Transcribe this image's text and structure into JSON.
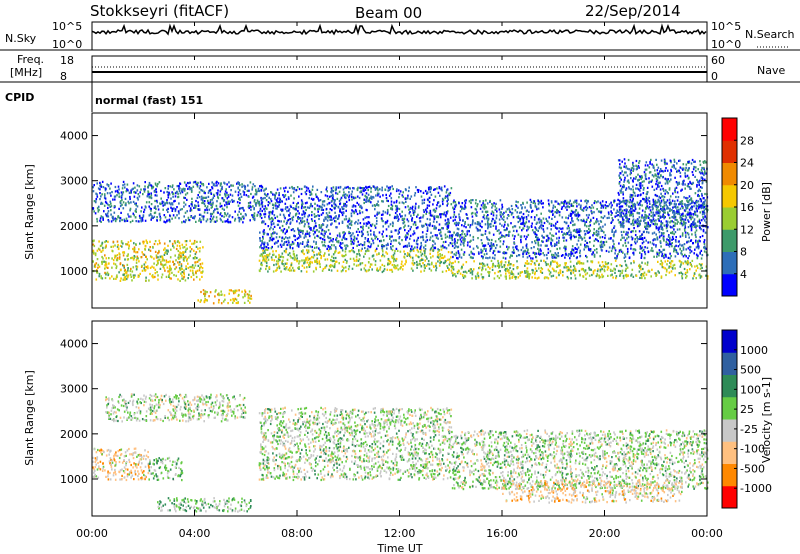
{
  "header": {
    "station": "Stokkseyri (fitACF)",
    "beam": "Beam 00",
    "date": "22/Sep/2014"
  },
  "strip": {
    "nsky_label": "N.Sky",
    "nsky_ticks": [
      "10^5",
      "10^0"
    ],
    "nsearch_label": "N.Search",
    "nsearch_ticks": [
      "10^5",
      "10^0"
    ],
    "freq_label_line1": "Freq.",
    "freq_label_line2": "[MHz]",
    "freq_ticks": [
      "18",
      "8"
    ],
    "nave_label": "Nave",
    "nave_ticks": [
      "60",
      "0"
    ],
    "cpid_label": "CPID",
    "cpid_value": "normal (fast) 151"
  },
  "x_axis": {
    "ticks": [
      "00:00",
      "04:00",
      "08:00",
      "12:00",
      "16:00",
      "20:00",
      "00:00"
    ],
    "label": "Time UT"
  },
  "power_panel": {
    "ylabel": "Slant Range [km]",
    "yticks": [
      "4000",
      "3000",
      "2000",
      "1000"
    ],
    "colorbar_label": "Power [dB]",
    "colorbar_ticks": [
      "28",
      "24",
      "20",
      "16",
      "12",
      "8",
      "4"
    ]
  },
  "velocity_panel": {
    "ylabel": "Slant Range [km]",
    "yticks": [
      "4000",
      "3000",
      "2000",
      "1000"
    ],
    "colorbar_label": "Velocity [m s-1]",
    "colorbar_ticks": [
      "1000",
      "500",
      "100",
      "25",
      "-25",
      "-100",
      "-500",
      "-1000"
    ]
  },
  "chart_data": [
    {
      "type": "heatmap",
      "title": "Power",
      "xlabel": "Time UT",
      "ylabel": "Slant Range [km]",
      "x_range_hours": [
        0,
        24
      ],
      "y_range_km": [
        180,
        4500
      ],
      "colorbar": {
        "label": "Power [dB]",
        "range": [
          0,
          32
        ],
        "colors": [
          "#0000ff",
          "#2d6eb8",
          "#3d9a6a",
          "#9acd32",
          "#f5c800",
          "#f08a00",
          "#e03000",
          "#ff0000"
        ]
      },
      "regions": [
        {
          "t_start": 0.0,
          "t_end": 4.3,
          "r_low": 800,
          "r_high": 1700,
          "power_db": 16
        },
        {
          "t_start": 4.1,
          "t_end": 6.2,
          "r_low": 300,
          "r_high": 600,
          "power_db": 18
        },
        {
          "t_start": 0.0,
          "t_end": 6.6,
          "r_low": 2100,
          "r_high": 3000,
          "power_db": 6
        },
        {
          "t_start": 6.5,
          "t_end": 14.0,
          "r_low": 1000,
          "r_high": 1500,
          "power_db": 14
        },
        {
          "t_start": 6.5,
          "t_end": 14.0,
          "r_low": 1500,
          "r_high": 2900,
          "power_db": 5
        },
        {
          "t_start": 14.0,
          "t_end": 24.0,
          "r_low": 850,
          "r_high": 1250,
          "power_db": 14
        },
        {
          "t_start": 14.0,
          "t_end": 24.0,
          "r_low": 1300,
          "r_high": 2600,
          "power_db": 6
        },
        {
          "t_start": 20.5,
          "t_end": 24.0,
          "r_low": 2000,
          "r_high": 3500,
          "power_db": 6
        }
      ]
    },
    {
      "type": "heatmap",
      "title": "Velocity",
      "xlabel": "Time UT",
      "ylabel": "Slant Range [km]",
      "x_range_hours": [
        0,
        24
      ],
      "y_range_km": [
        180,
        4500
      ],
      "colorbar": {
        "label": "Velocity [m s-1]",
        "range": [
          -1000,
          1000
        ],
        "colors": [
          "#ff0000",
          "#ff8800",
          "#ffc080",
          "#c8c8c8",
          "#66cc44",
          "#2e8b57",
          "#3060a0",
          "#0000cc"
        ]
      },
      "regions": [
        {
          "t_start": 0.0,
          "t_end": 2.2,
          "r_low": 1000,
          "r_high": 1700,
          "velocity": -300
        },
        {
          "t_start": 2.2,
          "t_end": 3.5,
          "r_low": 1000,
          "r_high": 1500,
          "velocity": 150
        },
        {
          "t_start": 2.5,
          "t_end": 6.2,
          "r_low": 300,
          "r_high": 600,
          "velocity": 150
        },
        {
          "t_start": 0.5,
          "t_end": 6.0,
          "r_low": 2300,
          "r_high": 2900,
          "velocity": 0
        },
        {
          "t_start": 6.5,
          "t_end": 14.0,
          "r_low": 1000,
          "r_high": 2600,
          "velocity": 0
        },
        {
          "t_start": 14.0,
          "t_end": 24.0,
          "r_low": 800,
          "r_high": 2100,
          "velocity": 0
        },
        {
          "t_start": 16.0,
          "t_end": 23.0,
          "r_low": 500,
          "r_high": 1000,
          "velocity": -250
        }
      ]
    }
  ]
}
